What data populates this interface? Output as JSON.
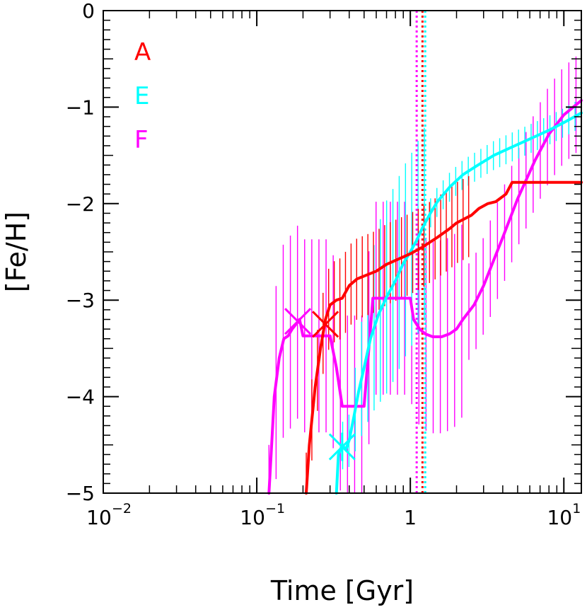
{
  "chart_data": {
    "type": "line",
    "title": "",
    "xlabel": "Time [Gyr]",
    "ylabel": "[Fe/H]",
    "xscale": "log",
    "xlim": [
      0.01,
      13
    ],
    "ylim": [
      -5,
      0
    ],
    "grid": false,
    "legend_position": "top-left",
    "x_ticks": [
      {
        "base": "10",
        "exp": "−2"
      },
      {
        "base": "10",
        "exp": "−1"
      },
      {
        "base": "1",
        "exp": ""
      },
      {
        "base": "10",
        "exp": "1"
      }
    ],
    "y_ticks": [
      "0",
      "−1",
      "−2",
      "−3",
      "−4",
      "−5"
    ],
    "y_tick_values": [
      0,
      -1,
      -2,
      -3,
      -4,
      -5
    ],
    "series": [
      {
        "name": "A",
        "color": "#ff0000",
        "x": [
          0.21,
          0.22,
          0.24,
          0.26,
          0.28,
          0.3,
          0.33,
          0.36,
          0.4,
          0.45,
          0.52,
          0.6,
          0.7,
          0.85,
          1.0,
          1.2,
          1.5,
          1.8,
          2.0,
          2.5,
          2.8,
          3.2,
          3.6,
          4.2,
          4.6,
          8,
          13
        ],
        "y": [
          -5.0,
          -4.5,
          -3.9,
          -3.5,
          -3.2,
          -3.05,
          -3.0,
          -2.98,
          -2.85,
          -2.78,
          -2.74,
          -2.7,
          -2.63,
          -2.57,
          -2.52,
          -2.45,
          -2.35,
          -2.26,
          -2.2,
          -2.12,
          -2.05,
          -2.0,
          -1.98,
          -1.9,
          -1.78,
          -1.78,
          -1.78
        ],
        "marker": {
          "x": 0.28,
          "y": -3.25,
          "symbol": "x"
        },
        "vline": 1.2
      },
      {
        "name": "E",
        "color": "#00ffff",
        "x": [
          0.33,
          0.34,
          0.36,
          0.38,
          0.4,
          0.43,
          0.46,
          0.5,
          0.55,
          0.62,
          0.7,
          0.8,
          0.9,
          1.0,
          1.1,
          1.2,
          1.35,
          1.5,
          1.8,
          2.2,
          2.7,
          3.5,
          4.5,
          6,
          8,
          10,
          13
        ],
        "y": [
          -5.0,
          -4.6,
          -4.5,
          -4.55,
          -4.45,
          -4.2,
          -3.95,
          -3.7,
          -3.4,
          -3.15,
          -2.97,
          -2.8,
          -2.62,
          -2.5,
          -2.38,
          -2.25,
          -2.1,
          -1.98,
          -1.83,
          -1.7,
          -1.61,
          -1.5,
          -1.42,
          -1.33,
          -1.24,
          -1.16,
          -1.06
        ],
        "marker": {
          "x": 0.36,
          "y": -4.52,
          "symbol": "asterisk"
        },
        "vline": 1.25
      },
      {
        "name": "F",
        "color": "#ff00ff",
        "x": [
          0.12,
          0.125,
          0.13,
          0.14,
          0.15,
          0.16,
          0.17,
          0.18,
          0.19,
          0.2,
          0.28,
          0.3,
          0.33,
          0.36,
          0.5,
          0.55,
          0.57,
          0.62,
          1.0,
          1.05,
          1.15,
          1.25,
          1.4,
          1.6,
          1.8,
          2.0,
          2.2,
          2.6,
          3.0,
          4.0,
          5.0,
          6.5,
          8.0,
          10,
          13
        ],
        "y": [
          -5.0,
          -4.5,
          -4.0,
          -3.6,
          -3.4,
          -3.37,
          -3.3,
          -3.25,
          -3.2,
          -3.37,
          -3.37,
          -3.37,
          -3.7,
          -4.1,
          -4.1,
          -3.3,
          -2.98,
          -2.98,
          -2.98,
          -3.2,
          -3.3,
          -3.35,
          -3.38,
          -3.38,
          -3.35,
          -3.3,
          -3.2,
          -3.05,
          -2.85,
          -2.35,
          -1.95,
          -1.55,
          -1.28,
          -1.08,
          -0.93
        ],
        "marker": {
          "x": 0.185,
          "y": -3.22,
          "symbol": "x"
        },
        "vline": 1.1
      }
    ],
    "error_bars": {
      "description_free": true,
      "A": {
        "x_from": 0.21,
        "x_to": 2.4,
        "count": 30,
        "half_range": 0.42
      },
      "E": {
        "x_from": 0.33,
        "x_to": 13,
        "count": 40,
        "half_range": 0.15
      },
      "F": {
        "x_from": 0.12,
        "x_to": 12,
        "count": 44,
        "half_range": 0.5
      }
    }
  }
}
